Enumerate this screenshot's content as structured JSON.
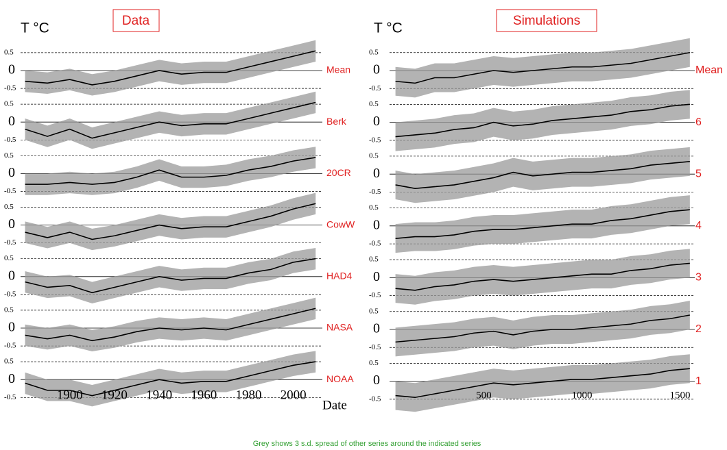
{
  "chart_data": [
    {
      "type": "line",
      "title": "Data",
      "ylabel": "T °C",
      "xlabel": "Date",
      "x": [
        1880,
        1890,
        1900,
        1910,
        1920,
        1930,
        1940,
        1950,
        1960,
        1970,
        1980,
        1990,
        2000,
        2010
      ],
      "xlim": [
        1878,
        2013
      ],
      "xticks": [
        1900,
        1920,
        1940,
        1960,
        1980,
        2000
      ],
      "ylim": [
        -0.72,
        0.72
      ],
      "yticks": [
        0.5,
        0,
        -0.5
      ],
      "color": "#000000",
      "band_color": "#9a9a9a",
      "series": [
        {
          "name": "Mean",
          "values": [
            -0.3,
            -0.35,
            -0.25,
            -0.4,
            -0.3,
            -0.15,
            0.0,
            -0.1,
            -0.05,
            -0.05,
            0.1,
            0.25,
            0.4,
            0.55
          ],
          "spread": 0.3
        },
        {
          "name": "Berk",
          "values": [
            -0.2,
            -0.4,
            -0.2,
            -0.45,
            -0.3,
            -0.15,
            0.0,
            -0.1,
            -0.05,
            -0.05,
            0.1,
            0.25,
            0.4,
            0.55
          ],
          "spread": 0.3
        },
        {
          "name": "20CR",
          "values": [
            -0.3,
            -0.3,
            -0.25,
            -0.3,
            -0.25,
            -0.1,
            0.1,
            -0.1,
            -0.1,
            -0.05,
            0.1,
            0.2,
            0.35,
            0.45
          ],
          "spread": 0.3
        },
        {
          "name": "CowW",
          "values": [
            -0.2,
            -0.35,
            -0.2,
            -0.4,
            -0.3,
            -0.15,
            0.0,
            -0.1,
            -0.05,
            -0.05,
            0.1,
            0.25,
            0.45,
            0.6
          ],
          "spread": 0.3
        },
        {
          "name": "HAD4",
          "values": [
            -0.15,
            -0.3,
            -0.25,
            -0.45,
            -0.3,
            -0.15,
            0.0,
            -0.1,
            -0.05,
            -0.05,
            0.1,
            0.2,
            0.4,
            0.5
          ],
          "spread": 0.3
        },
        {
          "name": "NASA",
          "values": [
            -0.2,
            -0.3,
            -0.2,
            -0.35,
            -0.25,
            -0.1,
            0.0,
            -0.05,
            0.0,
            -0.05,
            0.1,
            0.25,
            0.4,
            0.55
          ],
          "spread": 0.3
        },
        {
          "name": "NOAA",
          "values": [
            -0.1,
            -0.3,
            -0.3,
            -0.45,
            -0.3,
            -0.15,
            0.0,
            -0.1,
            -0.05,
            -0.05,
            0.1,
            0.25,
            0.4,
            0.5
          ],
          "spread": 0.3
        }
      ]
    },
    {
      "type": "line",
      "title": "Simulations",
      "ylabel": "T °C",
      "x": [
        50,
        150,
        250,
        350,
        450,
        550,
        650,
        750,
        850,
        950,
        1050,
        1150,
        1250,
        1350,
        1450,
        1550
      ],
      "xlim": [
        20,
        1575
      ],
      "xticks": [
        500,
        1000,
        1500
      ],
      "ylim": [
        -0.72,
        0.72
      ],
      "yticks": [
        0.5,
        0,
        -0.5
      ],
      "color": "#000000",
      "band_color": "#9a9a9a",
      "series": [
        {
          "name": "Mean",
          "values": [
            -0.3,
            -0.35,
            -0.2,
            -0.2,
            -0.1,
            0.0,
            -0.05,
            0.0,
            0.05,
            0.1,
            0.1,
            0.15,
            0.2,
            0.3,
            0.4,
            0.5
          ],
          "spread": 0.4
        },
        {
          "name": "6",
          "values": [
            -0.4,
            -0.35,
            -0.3,
            -0.2,
            -0.15,
            0.0,
            -0.1,
            -0.05,
            0.05,
            0.1,
            0.15,
            0.2,
            0.3,
            0.35,
            0.45,
            0.5
          ],
          "spread": 0.4
        },
        {
          "name": "5",
          "values": [
            -0.3,
            -0.4,
            -0.35,
            -0.3,
            -0.2,
            -0.1,
            0.05,
            -0.05,
            0.0,
            0.05,
            0.05,
            0.1,
            0.15,
            0.25,
            0.3,
            0.35
          ],
          "spread": 0.4
        },
        {
          "name": "4",
          "values": [
            -0.35,
            -0.3,
            -0.3,
            -0.25,
            -0.15,
            -0.1,
            -0.1,
            -0.05,
            0.0,
            0.05,
            0.05,
            0.15,
            0.2,
            0.3,
            0.4,
            0.45
          ],
          "spread": 0.4
        },
        {
          "name": "3",
          "values": [
            -0.3,
            -0.35,
            -0.25,
            -0.2,
            -0.1,
            -0.05,
            -0.1,
            -0.05,
            0.0,
            0.05,
            0.1,
            0.1,
            0.2,
            0.25,
            0.35,
            0.4
          ],
          "spread": 0.4
        },
        {
          "name": "2",
          "values": [
            -0.35,
            -0.3,
            -0.25,
            -0.2,
            -0.1,
            -0.05,
            -0.15,
            -0.05,
            0.0,
            0.0,
            0.05,
            0.1,
            0.15,
            0.25,
            0.3,
            0.4
          ],
          "spread": 0.4
        },
        {
          "name": "1",
          "values": [
            -0.4,
            -0.45,
            -0.35,
            -0.25,
            -0.15,
            -0.05,
            -0.1,
            -0.05,
            0.0,
            0.05,
            0.05,
            0.1,
            0.15,
            0.2,
            0.3,
            0.35
          ],
          "spread": 0.4
        }
      ]
    }
  ],
  "caption": "Grey shows 3 s.d. spread of other series around the indicated series"
}
